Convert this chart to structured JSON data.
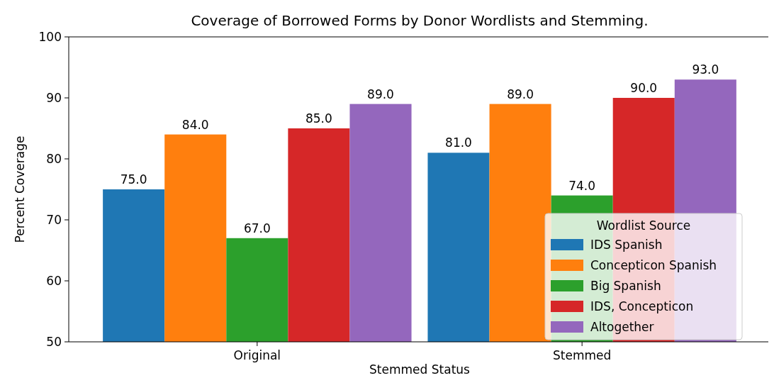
{
  "chart_data": {
    "type": "bar",
    "title": "Coverage of Borrowed Forms by Donor Wordlists and Stemming.",
    "xlabel": "Stemmed Status",
    "ylabel": "Percent Coverage",
    "legend_title": "Wordlist Source",
    "categories": [
      "Original",
      "Stemmed"
    ],
    "series": [
      {
        "name": "IDS Spanish",
        "color": "#1f77b4",
        "values": [
          75,
          81
        ],
        "value_labels": [
          "75.0",
          "81.0"
        ]
      },
      {
        "name": "Concepticon Spanish",
        "color": "#ff7f0e",
        "values": [
          84,
          89
        ],
        "value_labels": [
          "84.0",
          "89.0"
        ]
      },
      {
        "name": "Big Spanish",
        "color": "#2ca02c",
        "values": [
          67,
          74
        ],
        "value_labels": [
          "67.0",
          "74.0"
        ]
      },
      {
        "name": "IDS, Concepticon",
        "color": "#d62728",
        "values": [
          85,
          90
        ],
        "value_labels": [
          "85.0",
          "90.0"
        ]
      },
      {
        "name": "Altogether",
        "color": "#9467bd",
        "values": [
          89,
          93
        ],
        "value_labels": [
          "89.0",
          "93.0"
        ]
      }
    ],
    "ylim": [
      50,
      100
    ],
    "yticks": [
      50,
      60,
      70,
      80,
      90,
      100
    ],
    "grid": false,
    "legend": "bottom right"
  }
}
